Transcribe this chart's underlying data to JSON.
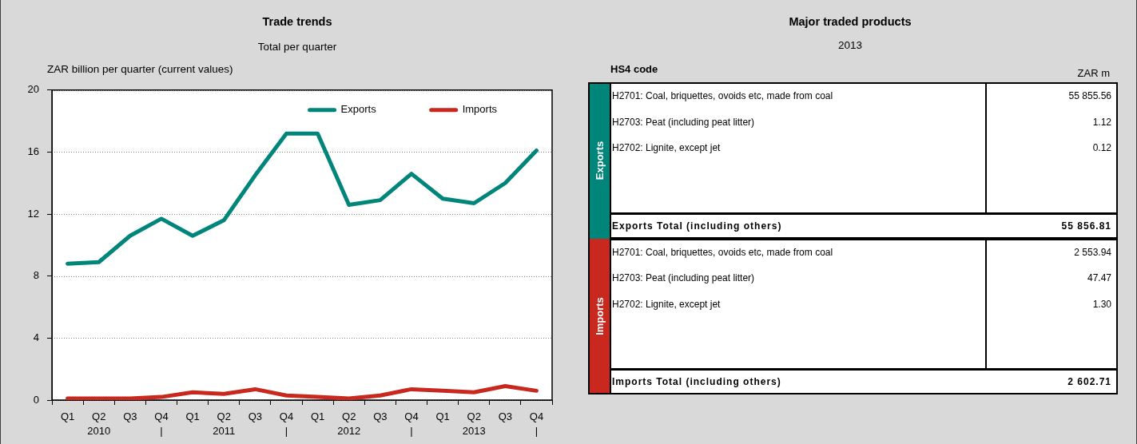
{
  "chart_data": [
    {
      "type": "line",
      "title": "Trade trends",
      "subtitle": "Total per quarter",
      "ylabel": "ZAR billion per quarter (current values)",
      "categories": [
        "Q1",
        "Q2\n2010",
        "Q3",
        "Q4\n|",
        "Q1",
        "Q2\n2011",
        "Q3",
        "Q4\n|",
        "Q1",
        "Q2\n2012",
        "Q3",
        "Q4\n|",
        "Q1",
        "Q2\n2013",
        "Q3",
        "Q4\n|"
      ],
      "series": [
        {
          "name": "Exports",
          "color": "#00857a",
          "values": [
            8.8,
            8.9,
            10.6,
            11.7,
            10.6,
            11.6,
            14.5,
            17.2,
            17.2,
            12.6,
            12.9,
            14.6,
            13.0,
            12.7,
            14.0,
            16.1
          ]
        },
        {
          "name": "Imports",
          "color": "#c8281e",
          "values": [
            0.1,
            0.1,
            0.1,
            0.2,
            0.5,
            0.4,
            0.7,
            0.3,
            0.2,
            0.1,
            0.3,
            0.7,
            0.6,
            0.5,
            0.9,
            0.6
          ]
        }
      ],
      "ylim": [
        0,
        20
      ],
      "yticks": [
        0,
        4,
        8,
        12,
        16,
        20
      ],
      "grid": "y",
      "legend": "top right"
    },
    {
      "type": "other",
      "title": "Major traded products",
      "subtitle": "2013",
      "xlabel": "HS4 code",
      "ylabel": "ZAR m",
      "categories": [
        "H2701: Coal, briquettes, ovoids etc, made from coal",
        "H2703: Peat (including peat litter)",
        "H2702: Lignite, except jet"
      ],
      "annotations": [
        "Exports",
        "55 855.56",
        "1.12",
        "0.12",
        "Exports Total (including others)",
        "55 856.81",
        "Imports",
        "2 553.94",
        "47.47",
        "1.30",
        "Imports Total (including others)",
        "2 602.71"
      ]
    }
  ]
}
